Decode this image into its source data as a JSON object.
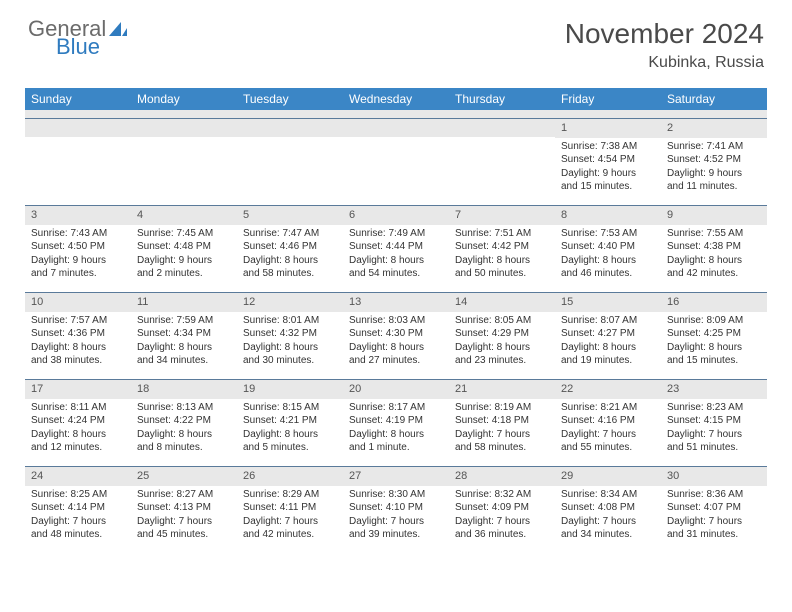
{
  "brand": {
    "part1": "General",
    "part2": "Blue"
  },
  "title": "November 2024",
  "location": "Kubinka, Russia",
  "colors": {
    "header_bg": "#3b86c6",
    "header_text": "#ffffff",
    "daynum_bg": "#e8e8e8",
    "border": "#5a7a9a",
    "text": "#333333",
    "logo_gray": "#6b6b6b",
    "logo_blue": "#2f7bbf"
  },
  "dayNames": [
    "Sunday",
    "Monday",
    "Tuesday",
    "Wednesday",
    "Thursday",
    "Friday",
    "Saturday"
  ],
  "weeks": [
    [
      {
        "n": "",
        "lines": []
      },
      {
        "n": "",
        "lines": []
      },
      {
        "n": "",
        "lines": []
      },
      {
        "n": "",
        "lines": []
      },
      {
        "n": "",
        "lines": []
      },
      {
        "n": "1",
        "lines": [
          "Sunrise: 7:38 AM",
          "Sunset: 4:54 PM",
          "Daylight: 9 hours",
          "and 15 minutes."
        ]
      },
      {
        "n": "2",
        "lines": [
          "Sunrise: 7:41 AM",
          "Sunset: 4:52 PM",
          "Daylight: 9 hours",
          "and 11 minutes."
        ]
      }
    ],
    [
      {
        "n": "3",
        "lines": [
          "Sunrise: 7:43 AM",
          "Sunset: 4:50 PM",
          "Daylight: 9 hours",
          "and 7 minutes."
        ]
      },
      {
        "n": "4",
        "lines": [
          "Sunrise: 7:45 AM",
          "Sunset: 4:48 PM",
          "Daylight: 9 hours",
          "and 2 minutes."
        ]
      },
      {
        "n": "5",
        "lines": [
          "Sunrise: 7:47 AM",
          "Sunset: 4:46 PM",
          "Daylight: 8 hours",
          "and 58 minutes."
        ]
      },
      {
        "n": "6",
        "lines": [
          "Sunrise: 7:49 AM",
          "Sunset: 4:44 PM",
          "Daylight: 8 hours",
          "and 54 minutes."
        ]
      },
      {
        "n": "7",
        "lines": [
          "Sunrise: 7:51 AM",
          "Sunset: 4:42 PM",
          "Daylight: 8 hours",
          "and 50 minutes."
        ]
      },
      {
        "n": "8",
        "lines": [
          "Sunrise: 7:53 AM",
          "Sunset: 4:40 PM",
          "Daylight: 8 hours",
          "and 46 minutes."
        ]
      },
      {
        "n": "9",
        "lines": [
          "Sunrise: 7:55 AM",
          "Sunset: 4:38 PM",
          "Daylight: 8 hours",
          "and 42 minutes."
        ]
      }
    ],
    [
      {
        "n": "10",
        "lines": [
          "Sunrise: 7:57 AM",
          "Sunset: 4:36 PM",
          "Daylight: 8 hours",
          "and 38 minutes."
        ]
      },
      {
        "n": "11",
        "lines": [
          "Sunrise: 7:59 AM",
          "Sunset: 4:34 PM",
          "Daylight: 8 hours",
          "and 34 minutes."
        ]
      },
      {
        "n": "12",
        "lines": [
          "Sunrise: 8:01 AM",
          "Sunset: 4:32 PM",
          "Daylight: 8 hours",
          "and 30 minutes."
        ]
      },
      {
        "n": "13",
        "lines": [
          "Sunrise: 8:03 AM",
          "Sunset: 4:30 PM",
          "Daylight: 8 hours",
          "and 27 minutes."
        ]
      },
      {
        "n": "14",
        "lines": [
          "Sunrise: 8:05 AM",
          "Sunset: 4:29 PM",
          "Daylight: 8 hours",
          "and 23 minutes."
        ]
      },
      {
        "n": "15",
        "lines": [
          "Sunrise: 8:07 AM",
          "Sunset: 4:27 PM",
          "Daylight: 8 hours",
          "and 19 minutes."
        ]
      },
      {
        "n": "16",
        "lines": [
          "Sunrise: 8:09 AM",
          "Sunset: 4:25 PM",
          "Daylight: 8 hours",
          "and 15 minutes."
        ]
      }
    ],
    [
      {
        "n": "17",
        "lines": [
          "Sunrise: 8:11 AM",
          "Sunset: 4:24 PM",
          "Daylight: 8 hours",
          "and 12 minutes."
        ]
      },
      {
        "n": "18",
        "lines": [
          "Sunrise: 8:13 AM",
          "Sunset: 4:22 PM",
          "Daylight: 8 hours",
          "and 8 minutes."
        ]
      },
      {
        "n": "19",
        "lines": [
          "Sunrise: 8:15 AM",
          "Sunset: 4:21 PM",
          "Daylight: 8 hours",
          "and 5 minutes."
        ]
      },
      {
        "n": "20",
        "lines": [
          "Sunrise: 8:17 AM",
          "Sunset: 4:19 PM",
          "Daylight: 8 hours",
          "and 1 minute."
        ]
      },
      {
        "n": "21",
        "lines": [
          "Sunrise: 8:19 AM",
          "Sunset: 4:18 PM",
          "Daylight: 7 hours",
          "and 58 minutes."
        ]
      },
      {
        "n": "22",
        "lines": [
          "Sunrise: 8:21 AM",
          "Sunset: 4:16 PM",
          "Daylight: 7 hours",
          "and 55 minutes."
        ]
      },
      {
        "n": "23",
        "lines": [
          "Sunrise: 8:23 AM",
          "Sunset: 4:15 PM",
          "Daylight: 7 hours",
          "and 51 minutes."
        ]
      }
    ],
    [
      {
        "n": "24",
        "lines": [
          "Sunrise: 8:25 AM",
          "Sunset: 4:14 PM",
          "Daylight: 7 hours",
          "and 48 minutes."
        ]
      },
      {
        "n": "25",
        "lines": [
          "Sunrise: 8:27 AM",
          "Sunset: 4:13 PM",
          "Daylight: 7 hours",
          "and 45 minutes."
        ]
      },
      {
        "n": "26",
        "lines": [
          "Sunrise: 8:29 AM",
          "Sunset: 4:11 PM",
          "Daylight: 7 hours",
          "and 42 minutes."
        ]
      },
      {
        "n": "27",
        "lines": [
          "Sunrise: 8:30 AM",
          "Sunset: 4:10 PM",
          "Daylight: 7 hours",
          "and 39 minutes."
        ]
      },
      {
        "n": "28",
        "lines": [
          "Sunrise: 8:32 AM",
          "Sunset: 4:09 PM",
          "Daylight: 7 hours",
          "and 36 minutes."
        ]
      },
      {
        "n": "29",
        "lines": [
          "Sunrise: 8:34 AM",
          "Sunset: 4:08 PM",
          "Daylight: 7 hours",
          "and 34 minutes."
        ]
      },
      {
        "n": "30",
        "lines": [
          "Sunrise: 8:36 AM",
          "Sunset: 4:07 PM",
          "Daylight: 7 hours",
          "and 31 minutes."
        ]
      }
    ]
  ]
}
